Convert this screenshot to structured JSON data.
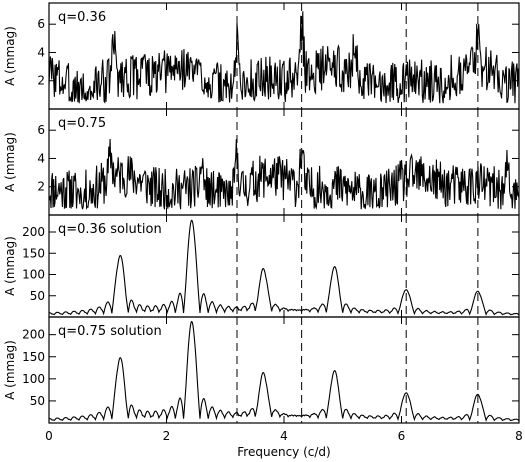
{
  "chart_data": [
    {
      "type": "line",
      "label": "q=0.36",
      "ylabel": "A (mmag)",
      "xlim": [
        0,
        8
      ],
      "ylim": [
        0,
        7.5
      ],
      "yticks": [
        2,
        4,
        6
      ],
      "kind": "noise",
      "noise_base": 2.2,
      "noise_amp": 1.6,
      "peaks": [
        [
          3.2,
          5.3
        ],
        [
          4.3,
          6.1
        ],
        [
          5.2,
          5.2
        ],
        [
          7.3,
          4.4
        ],
        [
          1.1,
          4.5
        ],
        [
          1.6,
          4.0
        ]
      ],
      "seed": 3
    },
    {
      "type": "line",
      "label": "q=0.75",
      "ylabel": "A (mmag)",
      "xlim": [
        0,
        8
      ],
      "ylim": [
        0,
        7.5
      ],
      "yticks": [
        2,
        4,
        6
      ],
      "kind": "noise",
      "noise_base": 2.0,
      "noise_amp": 1.6,
      "peaks": [
        [
          3.2,
          4.7
        ],
        [
          4.3,
          4.4
        ],
        [
          1.05,
          3.6
        ],
        [
          2.6,
          3.7
        ],
        [
          7.8,
          3.9
        ]
      ],
      "seed": 11
    },
    {
      "type": "line",
      "label": "q=0.36 solution",
      "ylabel": "A (mmag)",
      "xlim": [
        0,
        8
      ],
      "ylim": [
        0,
        240
      ],
      "yticks": [
        50,
        100,
        150,
        200
      ],
      "kind": "window",
      "peaks": [
        [
          1.21,
          135
        ],
        [
          2.43,
          218
        ],
        [
          3.65,
          100
        ],
        [
          4.86,
          108
        ],
        [
          6.08,
          56
        ],
        [
          7.3,
          54
        ]
      ]
    },
    {
      "type": "line",
      "label": "q=0.75 solution",
      "ylabel": "A (mmag)",
      "xlim": [
        0,
        8
      ],
      "ylim": [
        0,
        240
      ],
      "yticks": [
        50,
        100,
        150,
        200
      ],
      "kind": "window",
      "peaks": [
        [
          1.21,
          138
        ],
        [
          2.43,
          220
        ],
        [
          3.65,
          100
        ],
        [
          4.86,
          108
        ],
        [
          6.08,
          60
        ],
        [
          7.3,
          58
        ]
      ]
    }
  ],
  "shared_axes": {
    "xlabel": "Frequency (c/d)",
    "xticks": [
      0,
      2,
      4,
      6,
      8
    ],
    "vlines": [
      3.2,
      4.3,
      6.08,
      7.3
    ]
  }
}
